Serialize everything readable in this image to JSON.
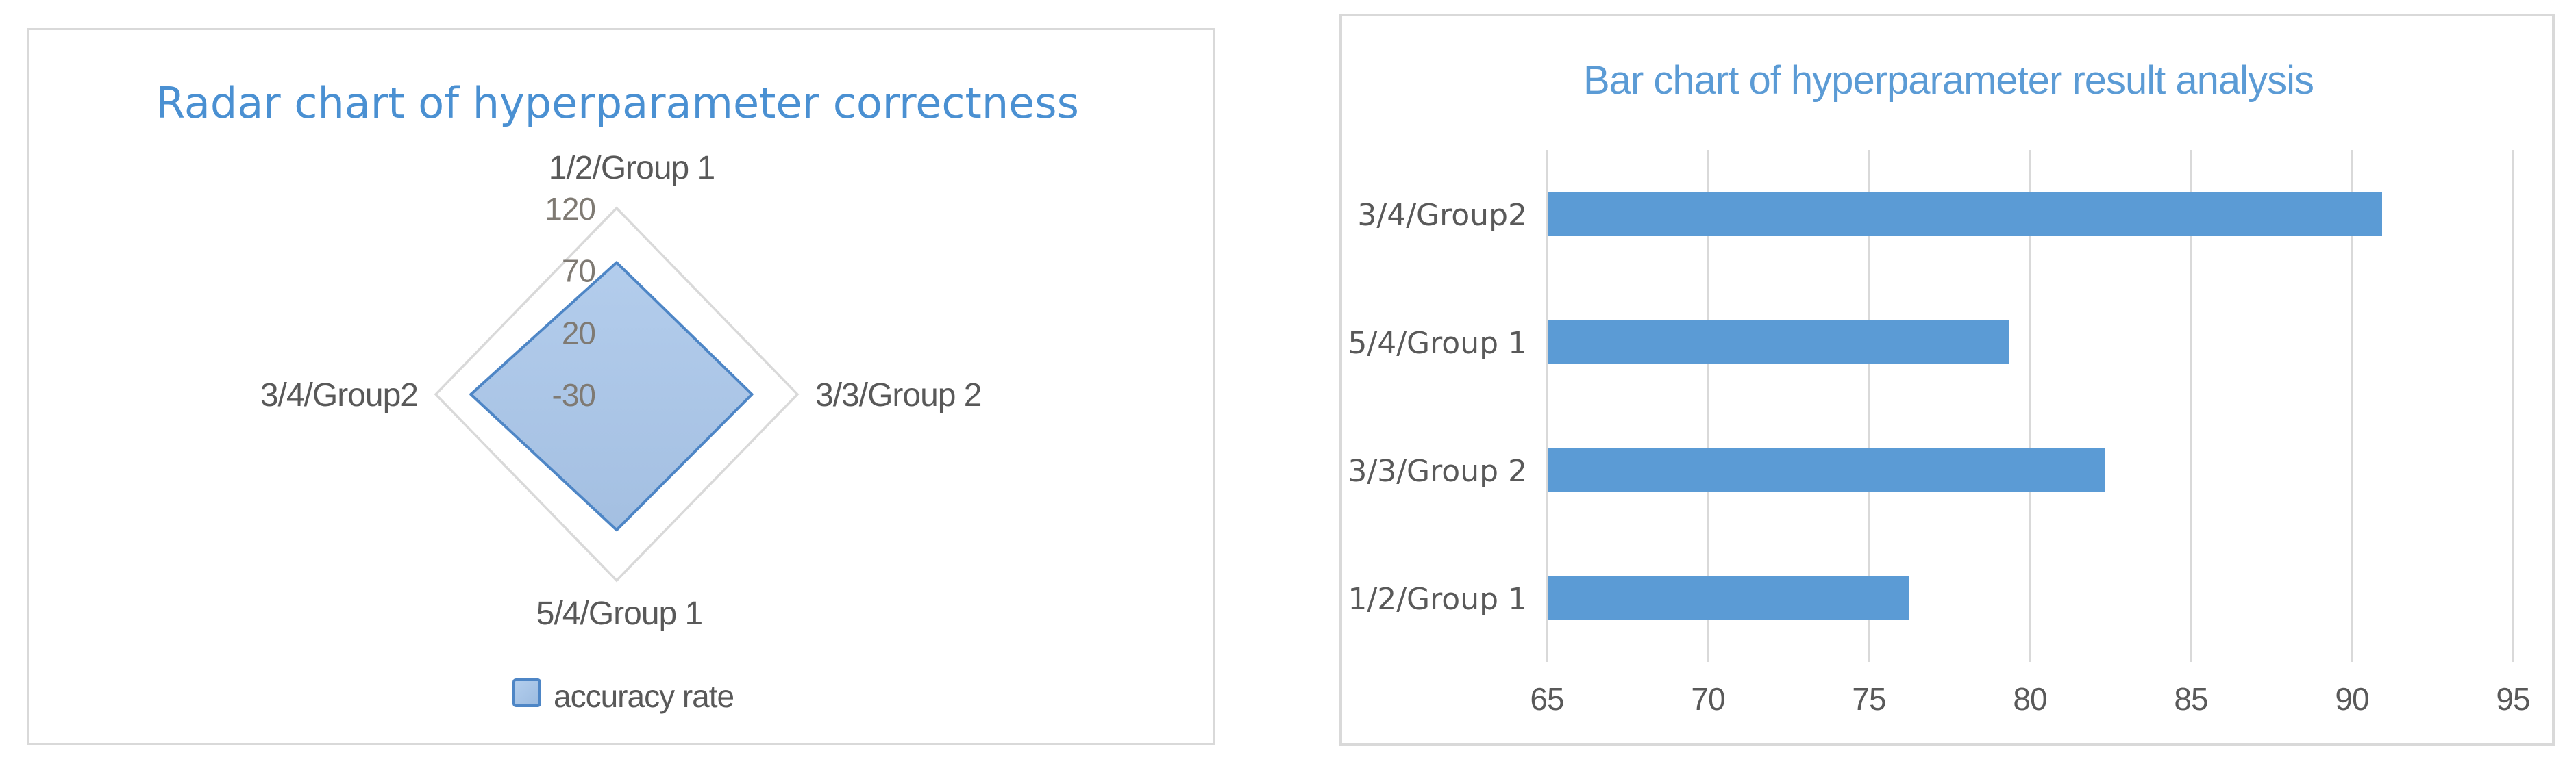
{
  "page": {
    "background": "#ffffff"
  },
  "colors": {
    "accent_bar": "#5b9bd5",
    "radar_fill_top": "#afcaeb",
    "radar_fill_bottom": "#9fbce0",
    "radar_stroke": "#4e86c6",
    "gridline": "#d9d9d9",
    "chart_border": "#d9d9d9",
    "axis_text": "#595959",
    "radial_tick_text": "#7f7a73",
    "title_left": "#4a90d2",
    "title_right": "#5b9bd5",
    "legend_marker_fill": "#a9c7e8",
    "legend_marker_border": "#4e86c6"
  },
  "chart_data": [
    {
      "type": "radar",
      "title": "Radar chart of hyperparameter correctness",
      "categories": [
        "1/2/Group 1",
        "3/3/Group 2",
        "5/4/Group 1",
        "3/4/Group2"
      ],
      "series": [
        {
          "name": "accuracy rate",
          "values": [
            76.2,
            82.3,
            79.3,
            90.9
          ]
        }
      ],
      "legend_label": "accuracy rate",
      "legend_position": "bottom",
      "radial_axis": {
        "min": -30,
        "max": 120,
        "major_unit": 50,
        "tick_labels_outer_to_center": [
          "120",
          "70",
          "20",
          "-30"
        ]
      },
      "grid": "outer-ring-only"
    },
    {
      "type": "bar",
      "title": "Bar chart of hyperparameter result analysis",
      "orientation": "horizontal",
      "categories": [
        "3/4/Group2",
        "5/4/Group 1",
        "3/3/Group 2",
        "1/2/Group 1"
      ],
      "values": [
        90.9,
        79.3,
        82.3,
        76.2
      ],
      "xlabel": "",
      "ylabel": "",
      "xlim": [
        65,
        95
      ],
      "xticks": [
        "65",
        "70",
        "75",
        "80",
        "85",
        "90",
        "95"
      ],
      "grid": "vertical-gridlines"
    }
  ]
}
